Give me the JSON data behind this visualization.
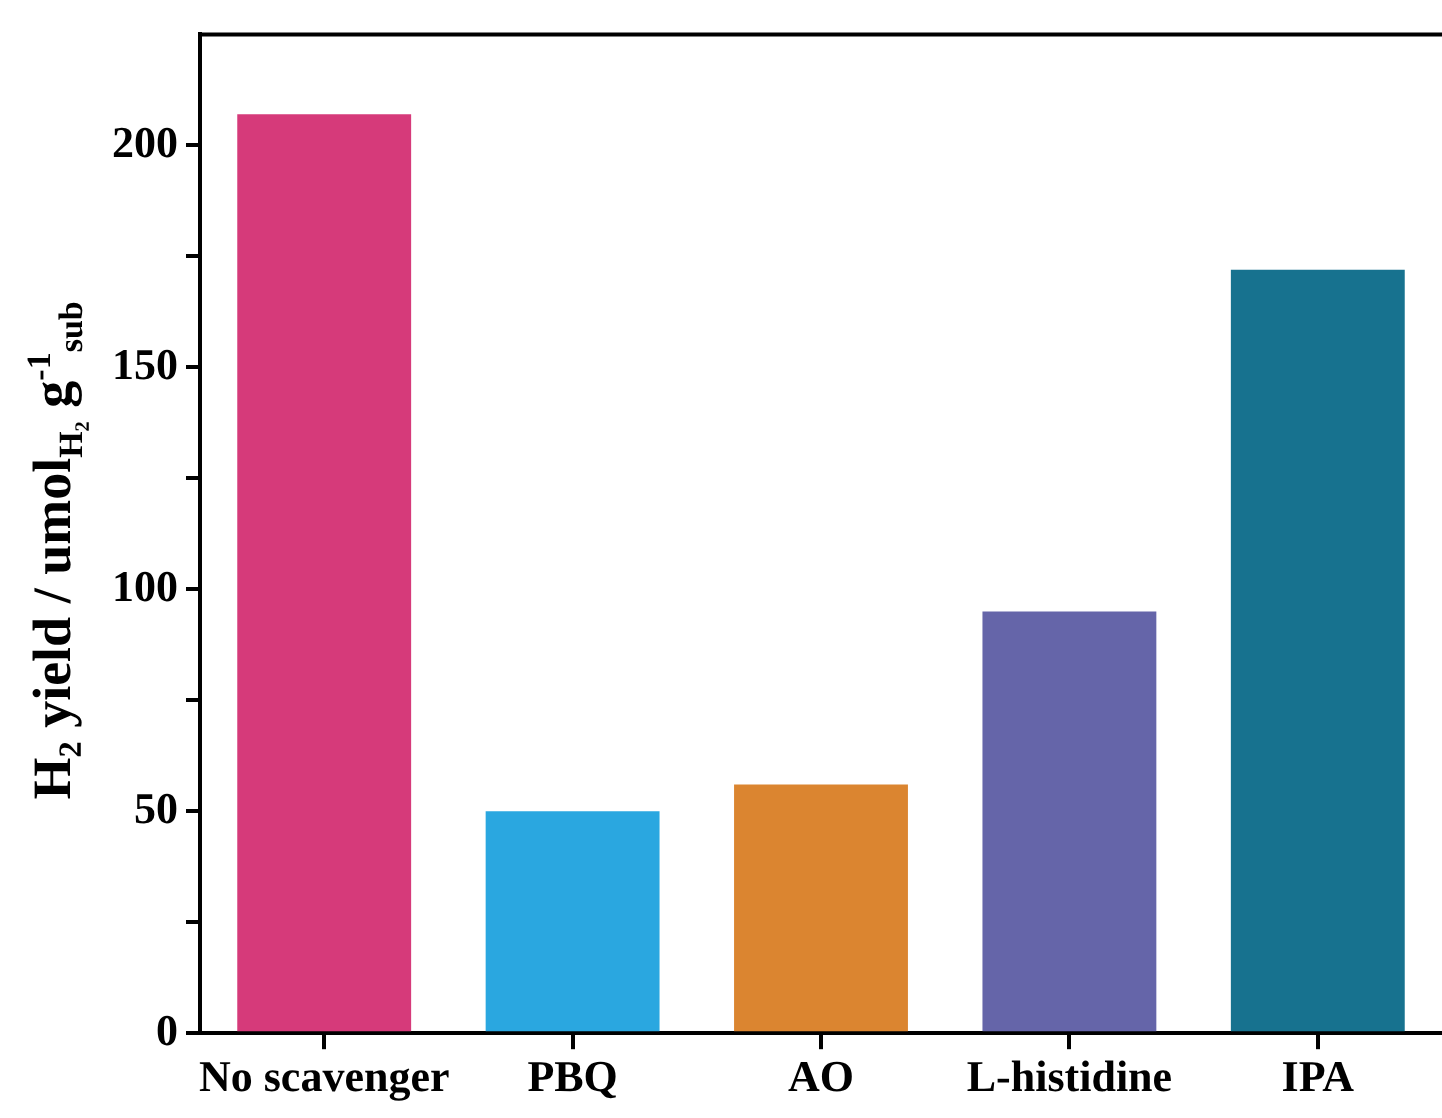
{
  "chart_data": {
    "type": "bar",
    "ylabel": "H₂ yield / umol$_{H₂}$ g$^{-1}$$_{sub}$",
    "categories": [
      "No scavenger",
      "PBQ",
      "AO",
      "L-histidine",
      "IPA"
    ],
    "values": [
      207,
      50,
      56,
      95,
      172
    ],
    "colors": [
      "#d63a7a",
      "#2aa7e0",
      "#db8530",
      "#6565a9",
      "#17728f"
    ],
    "ylim": [
      0,
      225
    ],
    "yticks": [
      0,
      {
        "value": 25,
        "label": null
      },
      50,
      {
        "value": 75,
        "label": null
      },
      100,
      {
        "value": 125,
        "label": null
      },
      150,
      {
        "value": 175,
        "label": null
      },
      200
    ],
    "grid": false,
    "legend": false
  }
}
